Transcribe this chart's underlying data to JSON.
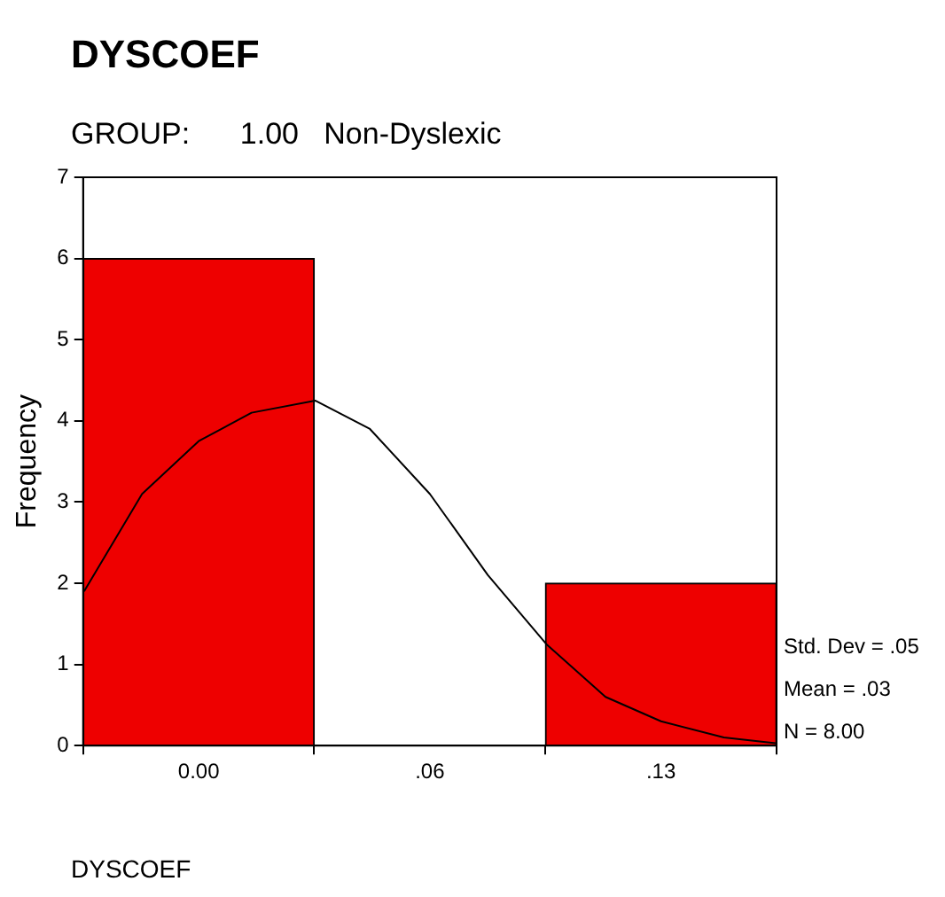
{
  "chart_data": {
    "type": "histogram",
    "title": "DYSCOEF",
    "subtitle": "GROUP:      1.00   Non-Dyslexic",
    "xlabel": "DYSCOEF",
    "ylabel": "Frequency",
    "bins": [
      -0.03125,
      0.03125,
      0.09375,
      0.15625
    ],
    "values": [
      6,
      0,
      2
    ],
    "color": "#ee0000",
    "series": [
      {
        "type": "line",
        "color": "#000000",
        "x": [
          -0.031,
          -0.0153,
          0,
          0.0143,
          0.0315,
          0.0463,
          0.0625,
          0.0782,
          0.094,
          0.11,
          0.125,
          0.142,
          0.156
        ],
        "values": [
          1.9,
          3.1,
          3.75,
          4.1,
          4.25,
          3.9,
          3.1,
          2.1,
          1.25,
          0.6,
          0.3,
          0.1,
          0.03
        ]
      }
    ],
    "xlim": [
      -0.03125,
      0.15625
    ],
    "xticks": [
      {
        "value": 0,
        "label": "0.00"
      },
      {
        "value": 0.0625,
        "label": ".06"
      },
      {
        "value": 0.125,
        "label": ".13"
      }
    ],
    "ylim": [
      0,
      7
    ],
    "yticks": [
      0,
      1,
      2,
      3,
      4,
      5,
      6,
      7
    ],
    "legend": false,
    "marker": "none",
    "annotations": [
      "Std. Dev = .05",
      "Mean = .03",
      "N = 8.00"
    ]
  }
}
